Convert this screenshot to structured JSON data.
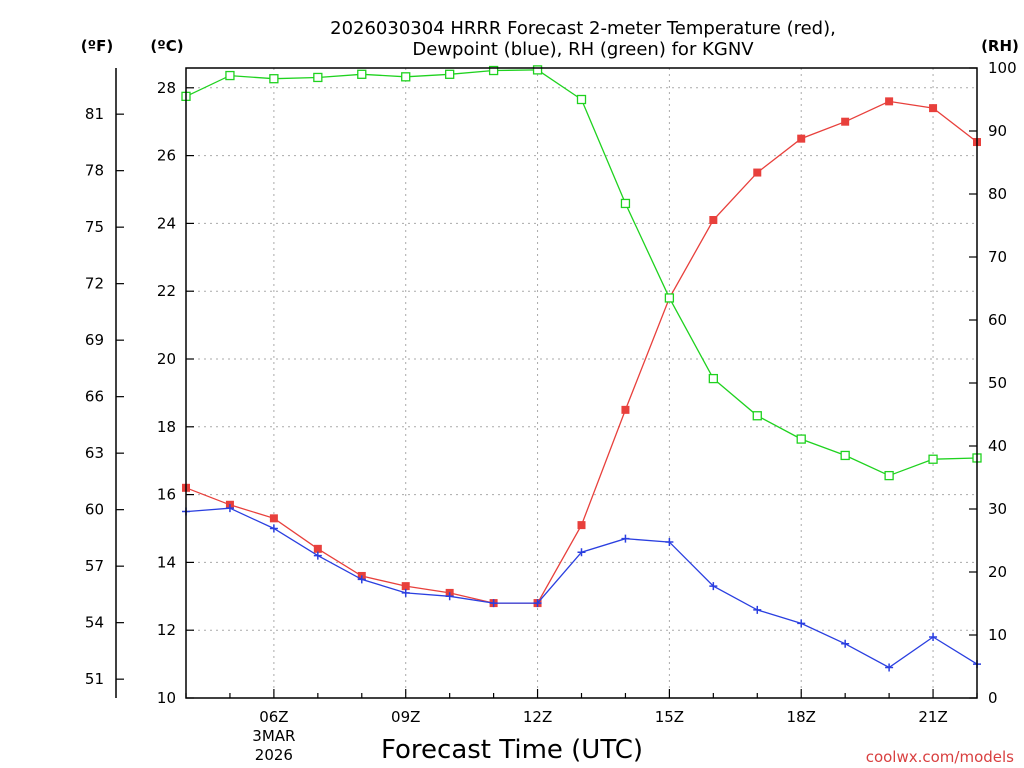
{
  "chart_data": {
    "type": "line",
    "title": [
      "2026030304 HRRR Forecast 2-meter Temperature (red),",
      "Dewpoint (blue), RH (green) for KGNV"
    ],
    "xlabel": "Forecast Time (UTC)",
    "units": {
      "fahrenheit": "(ºF)",
      "celsius": "(ºC)",
      "rh": "(RH)"
    },
    "credit": "coolwx.com/models",
    "x_hours": [
      4,
      5,
      6,
      7,
      8,
      9,
      10,
      11,
      12,
      13,
      14,
      15,
      16,
      17,
      18,
      19,
      20,
      21,
      22
    ],
    "xlim": [
      4,
      22
    ],
    "x_ticks": [
      {
        "hour": 6,
        "label": "06Z",
        "sub": [
          "3MAR",
          "2026"
        ]
      },
      {
        "hour": 9,
        "label": "09Z",
        "sub": []
      },
      {
        "hour": 12,
        "label": "12Z",
        "sub": []
      },
      {
        "hour": 15,
        "label": "15Z",
        "sub": []
      },
      {
        "hour": 18,
        "label": "18Z",
        "sub": []
      },
      {
        "hour": 21,
        "label": "21Z",
        "sub": []
      }
    ],
    "ylim_celsius": [
      10,
      28.5
    ],
    "y_ticks_celsius": [
      10,
      12,
      14,
      16,
      18,
      20,
      22,
      24,
      26,
      28
    ],
    "y_ticks_fahrenheit": [
      51,
      54,
      57,
      60,
      63,
      66,
      69,
      72,
      75,
      78,
      81
    ],
    "ylim_rh": [
      0,
      100
    ],
    "y_ticks_rh": [
      0,
      10,
      20,
      30,
      40,
      50,
      60,
      70,
      80,
      90,
      100
    ],
    "series": [
      {
        "name": "Temperature",
        "axis": "celsius",
        "color": "#e8403c",
        "marker": "filled-square",
        "values": [
          16.2,
          15.7,
          15.3,
          14.4,
          13.6,
          13.3,
          13.1,
          12.8,
          12.8,
          15.1,
          18.5,
          21.8,
          24.1,
          25.5,
          26.5,
          27.0,
          27.6,
          27.4,
          26.4
        ]
      },
      {
        "name": "Dewpoint",
        "axis": "celsius",
        "color": "#2a3fe0",
        "marker": "plus",
        "values": [
          15.5,
          15.6,
          15.0,
          14.2,
          13.5,
          13.1,
          13.0,
          12.8,
          12.8,
          14.3,
          14.7,
          14.6,
          13.3,
          12.6,
          12.2,
          11.6,
          10.9,
          11.8,
          11.0
        ]
      },
      {
        "name": "RH",
        "axis": "rh",
        "color": "#1fd21f",
        "marker": "open-square",
        "values": [
          95.5,
          98.8,
          98.3,
          98.5,
          99.0,
          98.6,
          99.0,
          99.6,
          99.7,
          95.0,
          78.5,
          63.5,
          50.7,
          44.8,
          41.1,
          38.5,
          35.3,
          37.9,
          38.1
        ]
      }
    ]
  }
}
